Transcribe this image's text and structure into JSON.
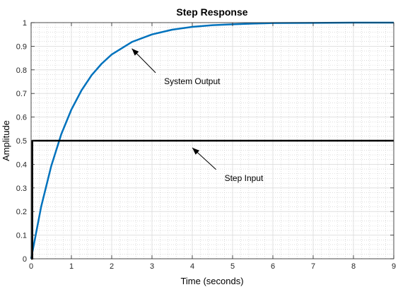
{
  "chart_data": {
    "type": "line",
    "title": "Step Response",
    "xlabel": "Time (seconds)",
    "ylabel": "Amplitude",
    "xlim": [
      0,
      9
    ],
    "ylim": [
      0,
      1
    ],
    "x_ticks": [
      0,
      1,
      2,
      3,
      4,
      5,
      6,
      7,
      8,
      9
    ],
    "y_ticks": [
      0,
      0.1,
      0.2,
      0.3,
      0.4,
      0.5,
      0.6,
      0.7,
      0.8,
      0.9,
      1
    ],
    "grid": true,
    "minor_grid": true,
    "series": [
      {
        "name": "System Output",
        "color": "#0072BD",
        "x": [
          0,
          0.25,
          0.5,
          0.75,
          1,
          1.25,
          1.5,
          1.75,
          2,
          2.5,
          3,
          3.5,
          4,
          4.5,
          5,
          5.5,
          6,
          7,
          8,
          9
        ],
        "y": [
          0,
          0.221,
          0.393,
          0.528,
          0.632,
          0.713,
          0.777,
          0.826,
          0.865,
          0.918,
          0.95,
          0.97,
          0.982,
          0.989,
          0.993,
          0.996,
          0.998,
          0.999,
          1.0,
          1.0
        ]
      },
      {
        "name": "Step Input",
        "color": "#000000",
        "x": [
          0,
          0.03,
          0.03,
          9
        ],
        "y": [
          0,
          0,
          0.5,
          0.5
        ]
      }
    ],
    "annotations": [
      {
        "text": "System Output",
        "arrow_tip": [
          2.5,
          0.89
        ],
        "label_at": [
          3.3,
          0.74
        ]
      },
      {
        "text": "Step Input",
        "arrow_tip": [
          4.0,
          0.47
        ],
        "label_at": [
          4.8,
          0.33
        ]
      }
    ]
  }
}
